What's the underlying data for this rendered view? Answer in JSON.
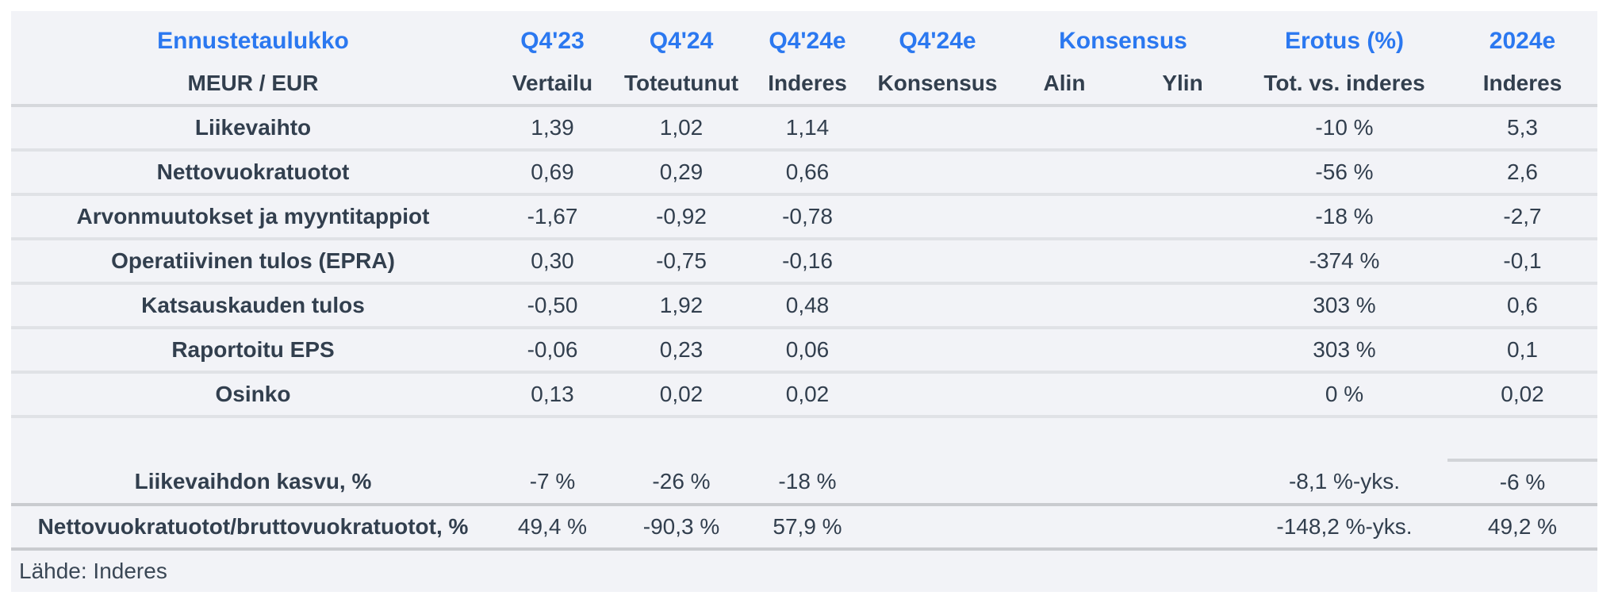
{
  "colors": {
    "accent_blue": "#2b78f0",
    "text_dark": "#323f4e",
    "table_background": "#f2f3f7",
    "divider_light": "#e0e2e6",
    "divider_strong": "#c9cbcf",
    "page_background": "#ffffff"
  },
  "table": {
    "title": "Ennustetaulukko",
    "unit_label": "MEUR / EUR",
    "header_periods": [
      "Q4'23",
      "Q4'24",
      "Q4'24e",
      "Q4'24e",
      "Konsensus",
      "Erotus (%)",
      "2024e"
    ],
    "header_subtitles": [
      "Vertailu",
      "Toteutunut",
      "Inderes",
      "Konsensus",
      "Alin",
      "Ylin",
      "Tot. vs. inderes",
      "Inderes"
    ],
    "rows": [
      {
        "label": "Liikevaihto",
        "values": [
          "1,39",
          "1,02",
          "1,14",
          "",
          "",
          "",
          "-10 %",
          "5,3"
        ]
      },
      {
        "label": "Nettovuokratuotot",
        "values": [
          "0,69",
          "0,29",
          "0,66",
          "",
          "",
          "",
          "-56 %",
          "2,6"
        ]
      },
      {
        "label": "Arvonmuutokset ja myyntitappiot",
        "values": [
          "-1,67",
          "-0,92",
          "-0,78",
          "",
          "",
          "",
          "-18 %",
          "-2,7"
        ]
      },
      {
        "label": "Operatiivinen tulos (EPRA)",
        "values": [
          "0,30",
          "-0,75",
          "-0,16",
          "",
          "",
          "",
          "-374 %",
          "-0,1"
        ]
      },
      {
        "label": "Katsauskauden tulos",
        "values": [
          "-0,50",
          "1,92",
          "0,48",
          "",
          "",
          "",
          "303 %",
          "0,6"
        ]
      },
      {
        "label": "Raportoitu EPS",
        "values": [
          "-0,06",
          "0,23",
          "0,06",
          "",
          "",
          "",
          "303 %",
          "0,1"
        ]
      },
      {
        "label": "Osinko",
        "values": [
          "0,13",
          "0,02",
          "0,02",
          "",
          "",
          "",
          "0 %",
          "0,02"
        ]
      }
    ],
    "summary_rows": [
      {
        "label": "Liikevaihdon kasvu, %",
        "values": [
          "-7 %",
          "-26 %",
          "-18 %",
          "",
          "",
          "",
          "-8,1 %-yks.",
          "-6 %"
        ]
      },
      {
        "label": "Nettovuokratuotot/bruttovuokratuotot, %",
        "values": [
          "49,4 %",
          "-90,3 %",
          "57,9 %",
          "",
          "",
          "",
          "-148,2 %-yks.",
          "49,2 %"
        ]
      }
    ],
    "source": "Lähde: Inderes"
  },
  "chart_data": {
    "type": "table",
    "title": "Ennustetaulukko",
    "unit": "MEUR / EUR",
    "columns": [
      "MEUR / EUR",
      "Q4'23 Vertailu",
      "Q4'24 Toteutunut",
      "Q4'24e Inderes",
      "Q4'24e Konsensus",
      "Konsensus Alin",
      "Konsensus Ylin",
      "Erotus (%) Tot. vs. inderes",
      "2024e Inderes"
    ],
    "rows": [
      [
        "Liikevaihto",
        "1,39",
        "1,02",
        "1,14",
        "",
        "",
        "",
        "-10 %",
        "5,3"
      ],
      [
        "Nettovuokratuotot",
        "0,69",
        "0,29",
        "0,66",
        "",
        "",
        "",
        "-56 %",
        "2,6"
      ],
      [
        "Arvonmuutokset ja myyntitappiot",
        "-1,67",
        "-0,92",
        "-0,78",
        "",
        "",
        "",
        "-18 %",
        "-2,7"
      ],
      [
        "Operatiivinen tulos (EPRA)",
        "0,30",
        "-0,75",
        "-0,16",
        "",
        "",
        "",
        "-374 %",
        "-0,1"
      ],
      [
        "Katsauskauden tulos",
        "-0,50",
        "1,92",
        "0,48",
        "",
        "",
        "",
        "303 %",
        "0,6"
      ],
      [
        "Raportoitu EPS",
        "-0,06",
        "0,23",
        "0,06",
        "",
        "",
        "",
        "303 %",
        "0,1"
      ],
      [
        "Osinko",
        "0,13",
        "0,02",
        "0,02",
        "",
        "",
        "",
        "0 %",
        "0,02"
      ],
      [
        "Liikevaihdon kasvu, %",
        "-7 %",
        "-26 %",
        "-18 %",
        "",
        "",
        "",
        "-8,1 %-yks.",
        "-6 %"
      ],
      [
        "Nettovuokratuotot/bruttovuokratuotot, %",
        "49,4 %",
        "-90,3 %",
        "57,9 %",
        "",
        "",
        "",
        "-148,2 %-yks.",
        "49,2 %"
      ]
    ],
    "source": "Lähde: Inderes"
  }
}
